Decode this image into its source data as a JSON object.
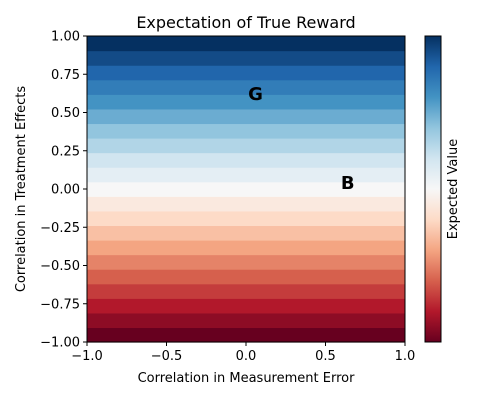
{
  "chart_data": {
    "type": "heatmap",
    "title": "Expectation of True Reward",
    "xlabel": "Correlation in Measurement Error",
    "ylabel": "Correlation in Treatment Effects",
    "xlim": [
      -1.0,
      1.0
    ],
    "ylim": [
      -1.0,
      1.0
    ],
    "x_ticks": [
      "−1.0",
      "−0.5",
      "0.0",
      "0.5",
      "1.0"
    ],
    "x_tick_values": [
      -1.0,
      -0.5,
      0.0,
      0.5,
      1.0
    ],
    "y_ticks": [
      "−1.00",
      "−0.75",
      "−0.50",
      "−0.25",
      "0.00",
      "0.25",
      "0.50",
      "0.75",
      "1.00"
    ],
    "y_tick_values": [
      -1.0,
      -0.75,
      -0.5,
      -0.25,
      0.0,
      0.25,
      0.5,
      0.75,
      1.0
    ],
    "grid": false,
    "colormap": "RdBu",
    "colormap_low": "#67001f",
    "colormap_mid": "#f7f7f7",
    "colormap_high": "#053061",
    "rows": 21,
    "row_values": [
      -1.0,
      -0.9,
      -0.8,
      -0.7,
      -0.6,
      -0.5,
      -0.4,
      -0.3,
      -0.2,
      -0.1,
      0.0,
      0.1,
      0.2,
      0.3,
      0.4,
      0.5,
      0.6,
      0.7,
      0.8,
      0.9,
      1.0
    ],
    "colorbar_label": "Expected Value",
    "annotations": [
      {
        "text": "G",
        "x": 0.06,
        "y": 0.62
      },
      {
        "text": "B",
        "x": 0.64,
        "y": 0.04
      }
    ]
  }
}
